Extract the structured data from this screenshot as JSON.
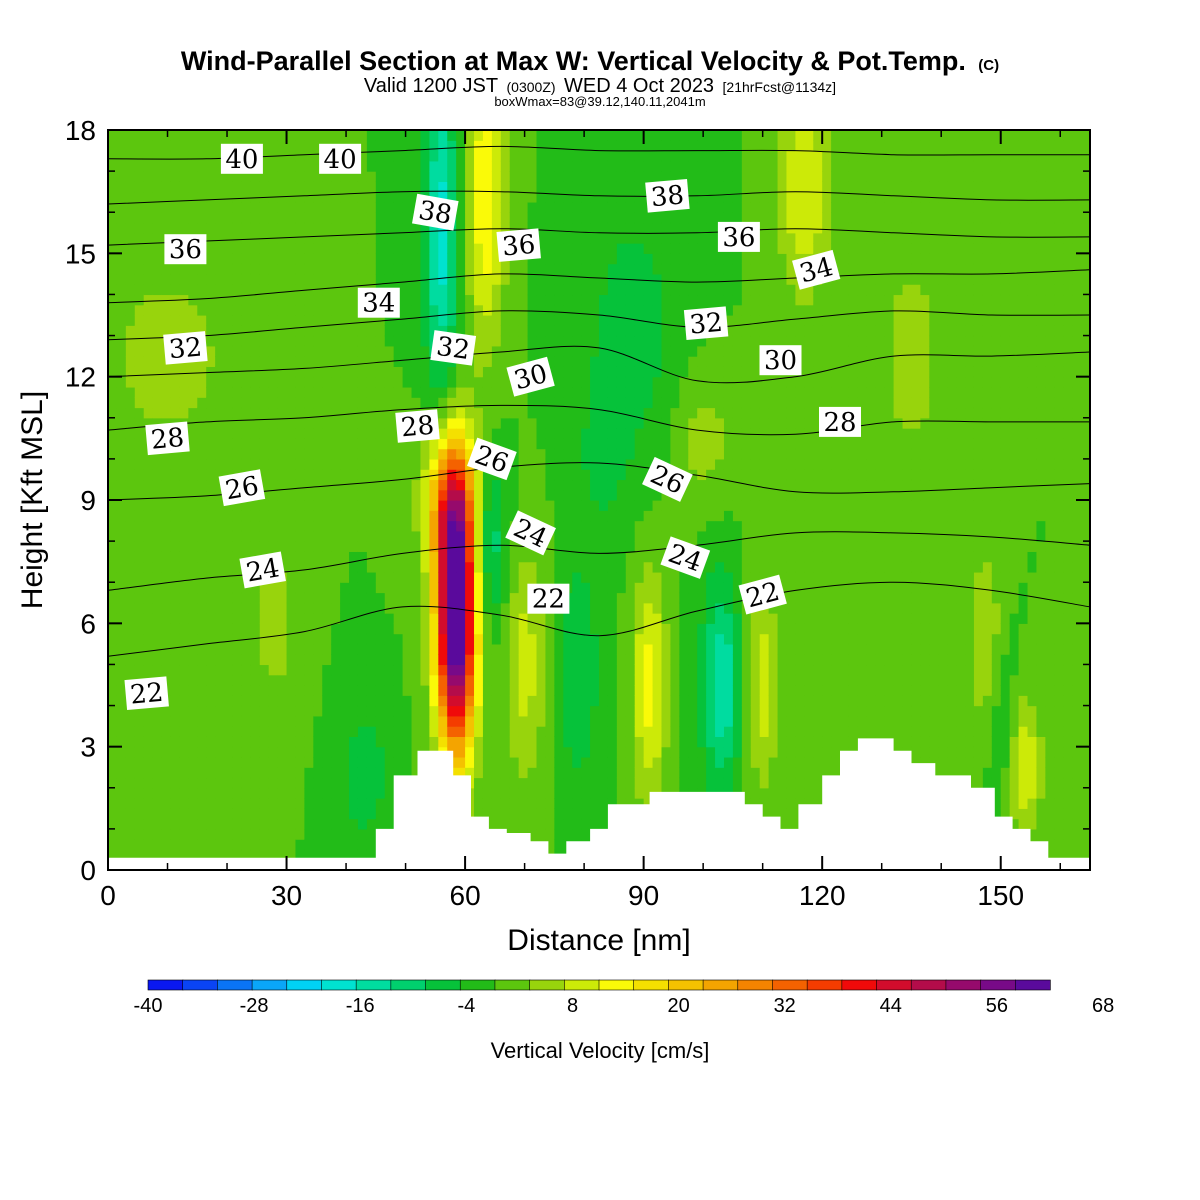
{
  "chart_data": {
    "type": "heatmap",
    "title": "Wind-Parallel Section at Max W: Vertical Velocity & Pot.Temp.",
    "title_mark": "(C)",
    "subtitle": {
      "part1": "Valid 1200 JST",
      "part2": "(0300Z)",
      "part3": "WED 4 Oct 2023",
      "part4": "[21hrFcst@1134z]"
    },
    "subsubtitle": "boxWmax=83@39.12,140.11,2041m",
    "xlabel": "Distance [nm]",
    "ylabel": "Height [Kft MSL]",
    "xlim": [
      0,
      165
    ],
    "ylim": [
      0,
      18
    ],
    "x_ticks": [
      0,
      30,
      60,
      90,
      120,
      150
    ],
    "y_ticks": [
      0,
      3,
      6,
      9,
      12,
      15,
      18
    ],
    "colorbar": {
      "label": "Vertical Velocity [cm/s]",
      "min": -40,
      "step": 4,
      "tick_labels": [
        "-40",
        "-28",
        "-16",
        "-4",
        "8",
        "20",
        "32",
        "44",
        "56",
        "68"
      ],
      "tick_values": [
        -40,
        -28,
        -16,
        -4,
        8,
        20,
        32,
        44,
        56,
        68
      ],
      "colors": [
        "#0a18f0",
        "#0a44f4",
        "#0a74f6",
        "#0aa6f8",
        "#00d2f4",
        "#00e2d0",
        "#00dca0",
        "#00d06e",
        "#06c23a",
        "#22bc18",
        "#5cc60e",
        "#98d40c",
        "#ccea08",
        "#fafa08",
        "#f4e000",
        "#f4c200",
        "#f4a400",
        "#f48400",
        "#f46200",
        "#f43c00",
        "#f00a0a",
        "#d20c2c",
        "#b40c4a",
        "#960a6c",
        "#780a88",
        "#5a0a9c"
      ]
    },
    "theta_contours": [
      {
        "value": 22,
        "heights": [
          5.2,
          5.5,
          5.8,
          6.4,
          6.2,
          5.7,
          6.3,
          6.8,
          7.0,
          6.8,
          6.4
        ]
      },
      {
        "value": 24,
        "heights": [
          6.8,
          7.1,
          7.3,
          7.7,
          7.9,
          7.7,
          7.9,
          8.2,
          8.2,
          8.1,
          7.9
        ]
      },
      {
        "value": 26,
        "heights": [
          9.0,
          9.1,
          9.3,
          9.5,
          9.8,
          9.9,
          9.6,
          9.2,
          9.2,
          9.3,
          9.4
        ]
      },
      {
        "value": 28,
        "heights": [
          10.7,
          10.9,
          11.0,
          11.2,
          11.3,
          11.2,
          10.7,
          10.6,
          10.9,
          10.9,
          10.9
        ]
      },
      {
        "value": 30,
        "heights": [
          12.0,
          12.1,
          12.2,
          12.4,
          12.6,
          12.7,
          11.9,
          12.0,
          12.5,
          12.5,
          12.6
        ]
      },
      {
        "value": 32,
        "heights": [
          12.9,
          13.0,
          13.2,
          13.4,
          13.6,
          13.5,
          13.2,
          13.4,
          13.6,
          13.5,
          13.5
        ]
      },
      {
        "value": 34,
        "heights": [
          13.8,
          13.9,
          14.1,
          14.3,
          14.5,
          14.4,
          14.3,
          14.4,
          14.5,
          14.5,
          14.6
        ]
      },
      {
        "value": 36,
        "heights": [
          15.2,
          15.3,
          15.4,
          15.5,
          15.6,
          15.5,
          15.5,
          15.6,
          15.5,
          15.4,
          15.4
        ]
      },
      {
        "value": 38,
        "heights": [
          16.2,
          16.3,
          16.4,
          16.5,
          16.5,
          16.4,
          16.4,
          16.5,
          16.4,
          16.3,
          16.3
        ]
      },
      {
        "value": 40,
        "heights": [
          17.3,
          17.3,
          17.4,
          17.5,
          17.6,
          17.5,
          17.5,
          17.5,
          17.4,
          17.4,
          17.4
        ]
      }
    ],
    "contour_labels": [
      {
        "text": "40",
        "x": 22.5,
        "y": 17.3,
        "rot": 0
      },
      {
        "text": "40",
        "x": 39.0,
        "y": 17.3,
        "rot": 0
      },
      {
        "text": "38",
        "x": 55.0,
        "y": 16.0,
        "rot": 10
      },
      {
        "text": "38",
        "x": 94.0,
        "y": 16.4,
        "rot": -5
      },
      {
        "text": "36",
        "x": 13.0,
        "y": 15.1,
        "rot": 0
      },
      {
        "text": "36",
        "x": 69.0,
        "y": 15.2,
        "rot": -5
      },
      {
        "text": "36",
        "x": 106.0,
        "y": 15.4,
        "rot": 0
      },
      {
        "text": "34",
        "x": 119.0,
        "y": 14.6,
        "rot": -15
      },
      {
        "text": "34",
        "x": 45.5,
        "y": 13.8,
        "rot": 0
      },
      {
        "text": "32",
        "x": 13.0,
        "y": 12.7,
        "rot": -5
      },
      {
        "text": "32",
        "x": 58.0,
        "y": 12.7,
        "rot": 8
      },
      {
        "text": "32",
        "x": 100.5,
        "y": 13.3,
        "rot": -5
      },
      {
        "text": "30",
        "x": 71.0,
        "y": 12.0,
        "rot": -15
      },
      {
        "text": "30",
        "x": 113.0,
        "y": 12.4,
        "rot": 0
      },
      {
        "text": "28",
        "x": 10.0,
        "y": 10.5,
        "rot": -5
      },
      {
        "text": "28",
        "x": 52.0,
        "y": 10.8,
        "rot": -5
      },
      {
        "text": "28",
        "x": 123.0,
        "y": 10.9,
        "rot": 0
      },
      {
        "text": "26",
        "x": 22.5,
        "y": 9.3,
        "rot": -10
      },
      {
        "text": "26",
        "x": 64.5,
        "y": 10.0,
        "rot": 20
      },
      {
        "text": "26",
        "x": 94.0,
        "y": 9.5,
        "rot": 25
      },
      {
        "text": "24",
        "x": 26.0,
        "y": 7.3,
        "rot": -10
      },
      {
        "text": "24",
        "x": 71.0,
        "y": 8.2,
        "rot": 25
      },
      {
        "text": "24",
        "x": 97.0,
        "y": 7.6,
        "rot": 20
      },
      {
        "text": "22",
        "x": 6.5,
        "y": 4.3,
        "rot": -5
      },
      {
        "text": "22",
        "x": 74.0,
        "y": 6.6,
        "rot": 0
      },
      {
        "text": "22",
        "x": 110.0,
        "y": 6.7,
        "rot": -15
      }
    ],
    "terrain_profile": [
      [
        0,
        0.3
      ],
      [
        45,
        0.3
      ],
      [
        45,
        1.0
      ],
      [
        48,
        1.0
      ],
      [
        48,
        2.3
      ],
      [
        52,
        2.3
      ],
      [
        52,
        2.9
      ],
      [
        58,
        2.9
      ],
      [
        58,
        2.3
      ],
      [
        61,
        2.3
      ],
      [
        61,
        1.3
      ],
      [
        64,
        1.3
      ],
      [
        64,
        1.0
      ],
      [
        67,
        1.0
      ],
      [
        67,
        0.9
      ],
      [
        71,
        0.9
      ],
      [
        71,
        0.7
      ],
      [
        74,
        0.7
      ],
      [
        74,
        0.4
      ],
      [
        77,
        0.4
      ],
      [
        77,
        0.7
      ],
      [
        81,
        0.7
      ],
      [
        81,
        1.0
      ],
      [
        84,
        1.0
      ],
      [
        84,
        1.6
      ],
      [
        91,
        1.6
      ],
      [
        91,
        1.9
      ],
      [
        107,
        1.9
      ],
      [
        107,
        1.6
      ],
      [
        110,
        1.6
      ],
      [
        110,
        1.3
      ],
      [
        113,
        1.3
      ],
      [
        113,
        1.0
      ],
      [
        116,
        1.0
      ],
      [
        116,
        1.6
      ],
      [
        120,
        1.6
      ],
      [
        120,
        2.3
      ],
      [
        123,
        2.3
      ],
      [
        123,
        2.9
      ],
      [
        126,
        2.9
      ],
      [
        126,
        3.2
      ],
      [
        132,
        3.2
      ],
      [
        132,
        2.9
      ],
      [
        135,
        2.9
      ],
      [
        135,
        2.6
      ],
      [
        139,
        2.6
      ],
      [
        139,
        2.3
      ],
      [
        145,
        2.3
      ],
      [
        145,
        2.0
      ],
      [
        149,
        2.0
      ],
      [
        149,
        1.3
      ],
      [
        152,
        1.3
      ],
      [
        152,
        1.0
      ],
      [
        155,
        1.0
      ],
      [
        155,
        0.7
      ],
      [
        158,
        0.7
      ],
      [
        158,
        0.3
      ],
      [
        165,
        0.3
      ]
    ],
    "w_base": 0,
    "w_features": [
      {
        "x": 58.5,
        "y": 6.2,
        "sx": 2.3,
        "sy": 2.3,
        "amp": 72
      },
      {
        "x": 57.5,
        "y": 9.0,
        "sx": 3.2,
        "sy": 1.2,
        "amp": 22
      },
      {
        "x": 63.5,
        "y": 16.5,
        "sx": 2.3,
        "sy": 2.6,
        "amp": 16
      },
      {
        "x": 56.0,
        "y": 15.5,
        "sx": 2.0,
        "sy": 2.8,
        "amp": -18
      },
      {
        "x": 64.0,
        "y": 8.0,
        "sx": 2.2,
        "sy": 1.5,
        "amp": -12
      },
      {
        "x": 70.0,
        "y": 5.0,
        "sx": 2.5,
        "sy": 2.0,
        "amp": 10
      },
      {
        "x": 79.0,
        "y": 4.8,
        "sx": 2.5,
        "sy": 2.0,
        "amp": -8
      },
      {
        "x": 91.0,
        "y": 4.5,
        "sx": 2.0,
        "sy": 2.0,
        "amp": 14
      },
      {
        "x": 103.0,
        "y": 4.5,
        "sx": 2.3,
        "sy": 1.8,
        "amp": -16
      },
      {
        "x": 110.0,
        "y": 4.5,
        "sx": 2.0,
        "sy": 1.8,
        "amp": 10
      },
      {
        "x": 147.5,
        "y": 5.5,
        "sx": 2.0,
        "sy": 1.8,
        "amp": 8
      },
      {
        "x": 150.0,
        "y": 3.5,
        "sx": 2.0,
        "sy": 1.5,
        "amp": -5
      },
      {
        "x": 154.0,
        "y": 2.5,
        "sx": 2.0,
        "sy": 1.2,
        "amp": 12
      },
      {
        "x": 28.0,
        "y": 6.0,
        "sx": 3.0,
        "sy": 1.5,
        "amp": 6
      },
      {
        "x": 43.0,
        "y": 2.3,
        "sx": 3.0,
        "sy": 1.2,
        "amp": -7
      },
      {
        "x": 10.0,
        "y": 12.5,
        "sx": 7.0,
        "sy": 1.5,
        "amp": 7
      },
      {
        "x": 117.0,
        "y": 16.5,
        "sx": 3.0,
        "sy": 1.8,
        "amp": 12
      },
      {
        "x": 88.0,
        "y": 13.0,
        "sx": 6.0,
        "sy": 2.5,
        "amp": -6
      },
      {
        "x": 135.0,
        "y": 12.5,
        "sx": 4.0,
        "sy": 2.0,
        "amp": 6
      },
      {
        "x": 100.0,
        "y": 10.5,
        "sx": 4.0,
        "sy": 1.2,
        "amp": 6
      },
      {
        "x": 83.0,
        "y": 10.0,
        "sx": 3.0,
        "sy": 1.3,
        "amp": -4
      }
    ]
  }
}
